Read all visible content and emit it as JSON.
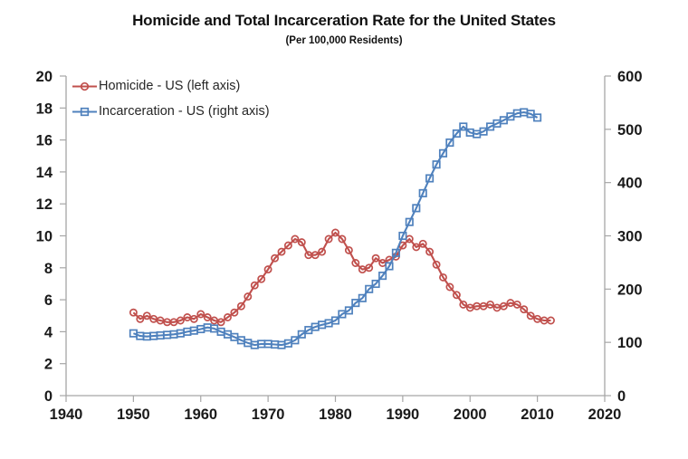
{
  "title": "Homicide and Total Incarceration Rate for the United States",
  "subtitle": "(Per 100,000 Residents)",
  "legend": {
    "items": [
      {
        "label": "Homicide - US (left axis)",
        "marker": "circle",
        "color": "#C0504D"
      },
      {
        "label": "Incarceration - US (right axis)",
        "marker": "square",
        "color": "#4F81BD"
      }
    ]
  },
  "style": {
    "axis_color": "#A6A6A6",
    "tick_text_color": "#1A1A1A",
    "background": "#FFFFFF",
    "homicide_color": "#C0504D",
    "incarceration_color": "#4F81BD"
  },
  "chart_data": {
    "type": "line",
    "title": "Homicide and Total Incarceration Rate for the United States",
    "subtitle": "(Per 100,000 Residents)",
    "grid": false,
    "legend_position": "top-left inside plot area",
    "x_axis": {
      "min": 1940,
      "max": 2020,
      "tick_interval": 10,
      "tick_labels": [
        "1940",
        "1950",
        "1960",
        "1970",
        "1980",
        "1990",
        "2000",
        "2010",
        "2020"
      ]
    },
    "y_axis_left": {
      "min": 0,
      "max": 20,
      "tick_interval": 2,
      "tick_labels": [
        "0",
        "2",
        "4",
        "6",
        "8",
        "10",
        "12",
        "14",
        "16",
        "18",
        "20"
      ]
    },
    "y_axis_right": {
      "min": 0,
      "max": 600,
      "tick_interval": 100,
      "tick_labels": [
        "0",
        "100",
        "200",
        "300",
        "400",
        "500",
        "600"
      ]
    },
    "series": [
      {
        "name": "Homicide - US (left axis)",
        "axis": "left",
        "color": "#C0504D",
        "marker": "circle",
        "start_year": 1950,
        "end_year": 2012,
        "values": [
          5.2,
          4.8,
          5.0,
          4.8,
          4.7,
          4.6,
          4.6,
          4.7,
          4.9,
          4.8,
          5.1,
          4.9,
          4.7,
          4.6,
          4.9,
          5.2,
          5.6,
          6.2,
          6.9,
          7.3,
          7.9,
          8.6,
          9.0,
          9.4,
          9.8,
          9.6,
          8.8,
          8.8,
          9.0,
          9.8,
          10.2,
          9.8,
          9.1,
          8.3,
          7.9,
          8.0,
          8.6,
          8.3,
          8.5,
          8.7,
          9.4,
          9.8,
          9.3,
          9.5,
          9.0,
          8.2,
          7.4,
          6.8,
          6.3,
          5.7,
          5.5,
          5.6,
          5.6,
          5.7,
          5.5,
          5.6,
          5.8,
          5.7,
          5.4,
          5.0,
          4.8,
          4.7,
          4.7
        ]
      },
      {
        "name": "Incarceration - US (right axis)",
        "axis": "right",
        "color": "#4F81BD",
        "marker": "square",
        "start_year": 1950,
        "end_year": 2010,
        "values": [
          117,
          112,
          111,
          112,
          113,
          114,
          115,
          117,
          120,
          122,
          125,
          128,
          126,
          120,
          115,
          110,
          104,
          99,
          95,
          97,
          97,
          96,
          95,
          98,
          104,
          115,
          123,
          129,
          133,
          136,
          141,
          153,
          160,
          174,
          183,
          200,
          210,
          225,
          243,
          268,
          300,
          326,
          352,
          380,
          408,
          434,
          455,
          475,
          492,
          505,
          494,
          491,
          496,
          505,
          511,
          517,
          524,
          530,
          532,
          529,
          522
        ]
      }
    ]
  }
}
